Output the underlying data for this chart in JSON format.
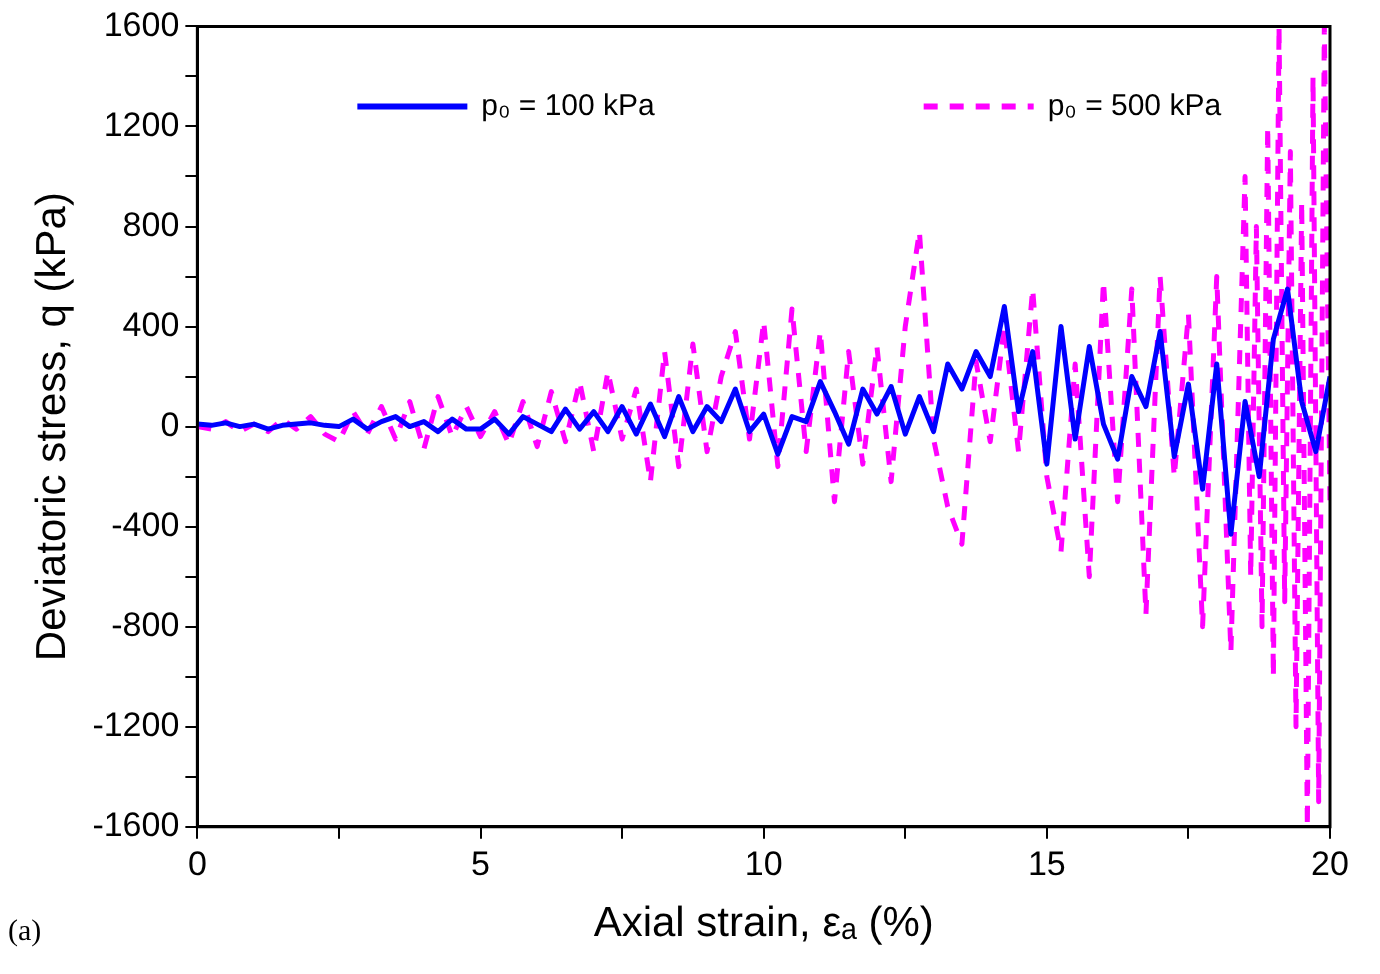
{
  "chart_data": {
    "type": "line",
    "xlabel": "Axial strain, εₐ (%)",
    "ylabel": "Deviatoric stress, q (kPa)",
    "annotations": [
      "(a)"
    ],
    "xlim": [
      0,
      20
    ],
    "xticks": [
      0,
      {
        "value": 2.5,
        "label": null
      },
      5,
      {
        "value": 7.5,
        "label": null
      },
      10,
      {
        "value": 12.5,
        "label": null
      },
      15,
      {
        "value": 17.5,
        "label": null
      },
      20
    ],
    "ylim": [
      -1600,
      1600
    ],
    "yticks": [
      -1600,
      {
        "value": -1400,
        "label": null
      },
      -1200,
      {
        "value": -1000,
        "label": null
      },
      -800,
      {
        "value": -600,
        "label": null
      },
      -400,
      {
        "value": -200,
        "label": null
      },
      0,
      {
        "value": 200,
        "label": null
      },
      400,
      {
        "value": 600,
        "label": null
      },
      800,
      {
        "value": 1000,
        "label": null
      },
      1200,
      {
        "value": 1400,
        "label": null
      },
      1600
    ],
    "grid": false,
    "legend": "top",
    "marker": "none",
    "series": [
      {
        "name": "p₀ = 100 kPa",
        "color": "#0000ff",
        "line_style": "solid",
        "x": [
          0,
          0.25,
          0.5,
          0.75,
          1,
          1.25,
          1.5,
          1.75,
          2,
          2.25,
          2.5,
          2.75,
          3,
          3.25,
          3.5,
          3.75,
          4,
          4.25,
          4.5,
          4.75,
          5,
          5.25,
          5.5,
          5.75,
          6,
          6.25,
          6.5,
          6.75,
          7,
          7.25,
          7.5,
          7.75,
          8,
          8.25,
          8.5,
          8.75,
          9,
          9.25,
          9.5,
          9.75,
          10,
          10.25,
          10.5,
          10.75,
          11,
          11.25,
          11.5,
          11.75,
          12,
          12.25,
          12.5,
          12.75,
          13,
          13.25,
          13.5,
          13.75,
          14,
          14.25,
          14.5,
          14.75,
          15,
          15.25,
          15.5,
          15.75,
          16,
          16.25,
          16.5,
          16.75,
          17,
          17.25,
          17.5,
          17.75,
          18,
          18.25,
          18.5,
          18.75,
          19,
          19.25,
          19.5,
          19.75,
          20
        ],
        "values": [
          10,
          5,
          15,
          0,
          10,
          -10,
          5,
          10,
          15,
          5,
          0,
          30,
          -10,
          20,
          40,
          0,
          20,
          -20,
          30,
          -10,
          -10,
          30,
          -30,
          40,
          10,
          -20,
          70,
          -10,
          60,
          -20,
          80,
          -30,
          90,
          -40,
          120,
          -20,
          80,
          20,
          150,
          -20,
          50,
          -110,
          40,
          20,
          180,
          60,
          -70,
          150,
          50,
          160,
          -30,
          120,
          -20,
          250,
          150,
          300,
          200,
          480,
          60,
          300,
          -150,
          400,
          -50,
          320,
          10,
          -130,
          200,
          80,
          380,
          -120,
          170,
          -250,
          250,
          -430,
          100,
          -200,
          350,
          550,
          100,
          -100,
          200
        ]
      },
      {
        "name": "p₀ = 500 kPa",
        "color": "#ff00ff",
        "line_style": "dashed",
        "x": [
          0,
          0.25,
          0.5,
          0.75,
          1,
          1.25,
          1.5,
          1.75,
          2,
          2.25,
          2.5,
          2.75,
          3,
          3.25,
          3.5,
          3.75,
          4,
          4.25,
          4.5,
          4.75,
          5,
          5.25,
          5.5,
          5.75,
          6,
          6.25,
          6.5,
          6.75,
          7,
          7.25,
          7.5,
          7.75,
          8,
          8.25,
          8.5,
          8.75,
          9,
          9.25,
          9.5,
          9.75,
          10,
          10.25,
          10.5,
          10.75,
          11,
          11.25,
          11.5,
          11.75,
          12,
          12.25,
          12.5,
          12.75,
          13,
          13.25,
          13.5,
          13.75,
          14,
          14.25,
          14.5,
          14.75,
          15,
          15.25,
          15.5,
          15.75,
          16,
          16.25,
          16.5,
          16.75,
          17,
          17.25,
          17.5,
          17.75,
          18,
          18.25,
          18.5,
          18.6,
          18.7,
          18.8,
          18.9,
          19,
          19.1,
          19.2,
          19.3,
          19.4,
          19.5,
          19.6,
          19.7,
          19.8,
          19.9,
          20
        ],
        "values": [
          0,
          -10,
          20,
          -20,
          10,
          -20,
          30,
          -10,
          40,
          -30,
          -60,
          60,
          -30,
          80,
          -50,
          100,
          -90,
          120,
          -40,
          80,
          -40,
          60,
          -70,
          100,
          -80,
          140,
          -60,
          180,
          -100,
          220,
          -50,
          150,
          -220,
          300,
          -160,
          330,
          -100,
          200,
          380,
          -50,
          420,
          -160,
          470,
          -100,
          380,
          -300,
          300,
          -150,
          320,
          -220,
          400,
          780,
          -50,
          -320,
          -470,
          260,
          -60,
          400,
          -100,
          550,
          -200,
          -500,
          250,
          -600,
          580,
          -300,
          550,
          -750,
          600,
          -200,
          450,
          -800,
          600,
          -900,
          1000,
          -600,
          800,
          -800,
          1200,
          -1000,
          1600,
          -700,
          1100,
          -1200,
          900,
          -1600,
          1400,
          -1500,
          1600,
          -300
        ]
      }
    ]
  }
}
